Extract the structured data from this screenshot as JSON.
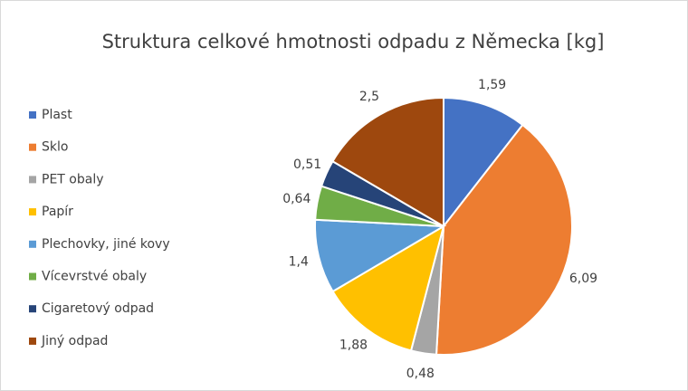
{
  "chart_data": {
    "type": "pie",
    "title": "Struktura celkové hmotnosti odpadu z Německa [kg]",
    "categories": [
      "Plast",
      "Sklo",
      "PET obaly",
      "Papír",
      "Plechovky, jiné kovy",
      "Vícevrstvé obaly",
      "Cigaretový odpad",
      "Jiný odpad"
    ],
    "values": [
      1.59,
      6.09,
      0.48,
      1.88,
      1.4,
      0.64,
      0.51,
      2.5
    ],
    "value_labels": [
      "1,59",
      "6,09",
      "0,48",
      "1,88",
      "1,4",
      "0,64",
      "0,51",
      "2,5"
    ],
    "colors": [
      "#4472c4",
      "#ed7d31",
      "#a5a5a5",
      "#ffc000",
      "#5b9bd5",
      "#70ad47",
      "#264478",
      "#9e480e"
    ],
    "legend": "left"
  }
}
